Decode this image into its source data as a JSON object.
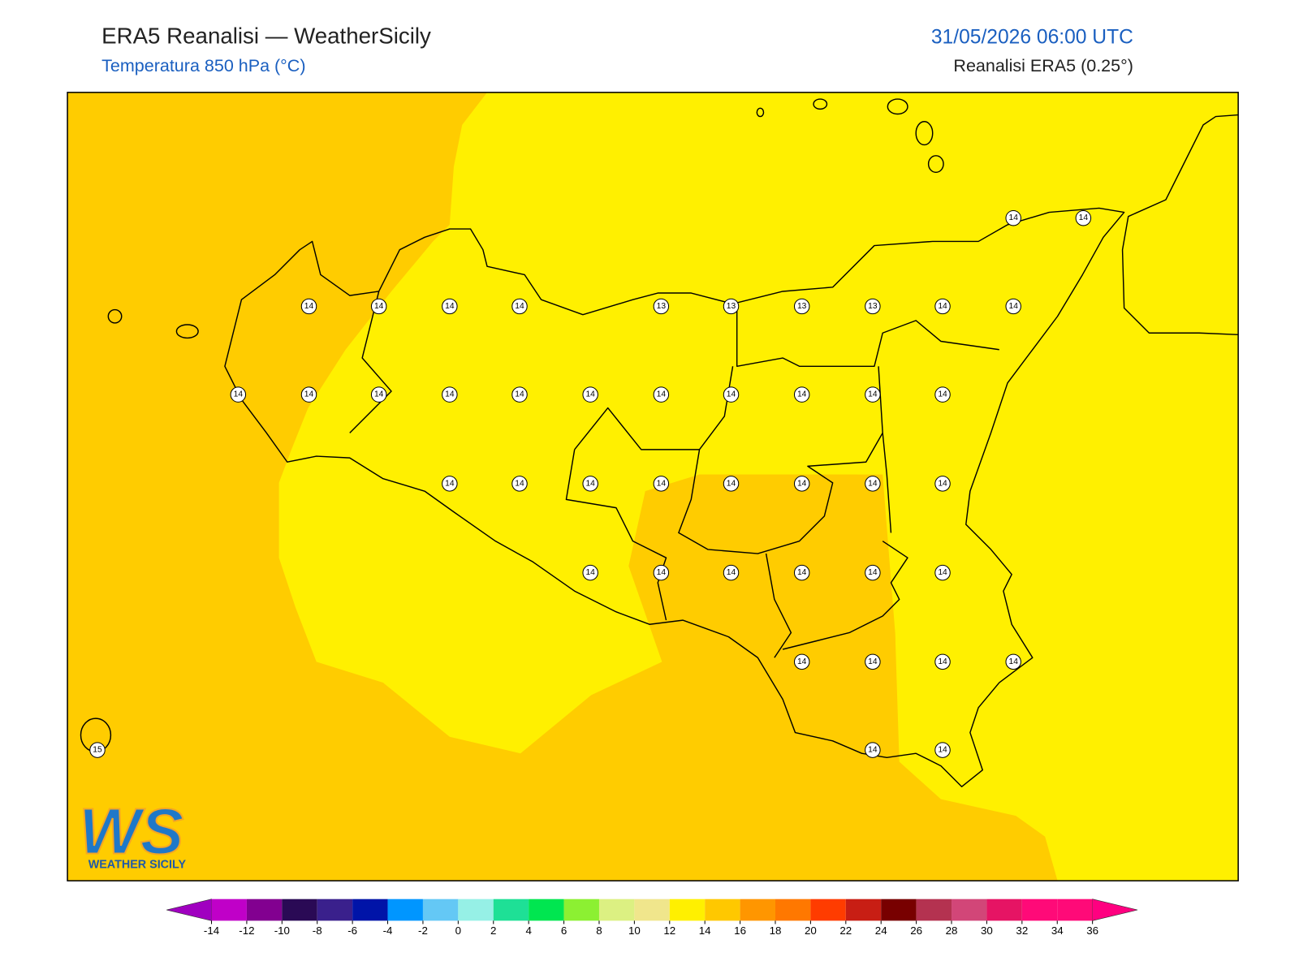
{
  "header": {
    "title": "ERA5 Reanalisi — WeatherSicily",
    "subtitle": "Temperatura 850 hPa (°C)",
    "datetime": "31/05/2026 06:00 UTC",
    "source": "Reanalisi ERA5 (0.25°)"
  },
  "stations": {
    "values": [
      14,
      14,
      14,
      14,
      14,
      14,
      13,
      13,
      13,
      13,
      14,
      14,
      14,
      14,
      14,
      14,
      14,
      14,
      14,
      14,
      14,
      14,
      14,
      14,
      14,
      14,
      14,
      14,
      14,
      14,
      14,
      14,
      14,
      14,
      14,
      14,
      14,
      14,
      14,
      14,
      14,
      15,
      14,
      14
    ]
  },
  "logo": {
    "mark": "WS",
    "name": "WEATHER SICILY"
  },
  "colorbar": {
    "ticks": [
      -14,
      -12,
      -10,
      -8,
      -6,
      -4,
      -2,
      0,
      2,
      4,
      6,
      8,
      10,
      12,
      14,
      16,
      18,
      20,
      22,
      24,
      26,
      28,
      30,
      32,
      34,
      36
    ],
    "colors": [
      "#c000c8",
      "#820090",
      "#2a0a55",
      "#3a208c",
      "#0014a8",
      "#0096ff",
      "#64c8f5",
      "#96f0e6",
      "#1ee096",
      "#00e650",
      "#8cf032",
      "#dcf082",
      "#f0e68c",
      "#fff000",
      "#ffc800",
      "#ff9600",
      "#ff7800",
      "#ff3c00",
      "#c81e14",
      "#780000",
      "#b43250",
      "#d24678",
      "#e61464",
      "#ff0a78",
      "#ff0a78"
    ],
    "under_color": "#a000c0",
    "over_color": "#ff0080"
  }
}
